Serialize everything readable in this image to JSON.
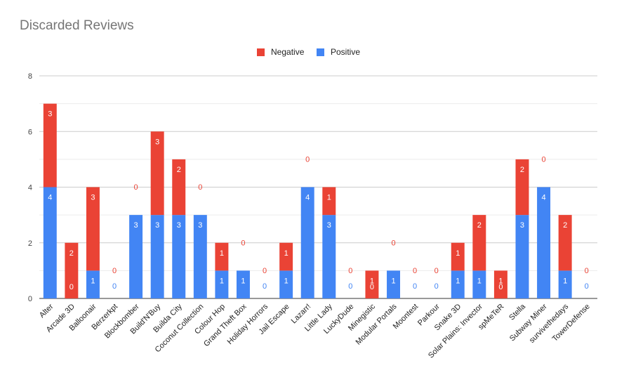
{
  "chart_data": {
    "type": "bar",
    "stacked": true,
    "title": "Discarded Reviews",
    "xlabel": "",
    "ylabel": "",
    "ylim": [
      0,
      8
    ],
    "yticks": [
      0,
      2,
      4,
      6,
      8
    ],
    "grid": true,
    "legend_position": "top",
    "categories": [
      "Alter",
      "Arcade 3D",
      "Balloonair",
      "Berzerkpt",
      "Blockbomber",
      "Build'N'Buy",
      "Builda City",
      "Coconut Collection",
      "Colour Hop",
      "Grand Theft Box",
      "Holiday Horrors",
      "Jail Escape",
      "Lazarr!",
      "Little Lady",
      "LuckyDude",
      "Minegistic",
      "Modular Portals",
      "Moontest",
      "Parkour",
      "Snake 3D",
      "Solar Plains: Invector",
      "spMeTeR",
      "Stella",
      "Subway Miner",
      "survivethedays",
      "TowerDefense"
    ],
    "series": [
      {
        "name": "Positive",
        "color": "#4285f4",
        "values": [
          4,
          0,
          1,
          0,
          3,
          3,
          3,
          3,
          1,
          1,
          0,
          1,
          4,
          3,
          0,
          0,
          1,
          0,
          0,
          1,
          1,
          0,
          3,
          4,
          1,
          0
        ]
      },
      {
        "name": "Negative",
        "color": "#ea4335",
        "values": [
          3,
          2,
          3,
          0,
          0,
          3,
          2,
          0,
          1,
          0,
          0,
          1,
          0,
          1,
          0,
          1,
          0,
          0,
          0,
          1,
          2,
          1,
          2,
          0,
          2,
          0
        ]
      }
    ]
  },
  "legend": {
    "negative_label": "Negative",
    "positive_label": "Positive",
    "negative_color": "#ea4335",
    "positive_color": "#4285f4"
  }
}
